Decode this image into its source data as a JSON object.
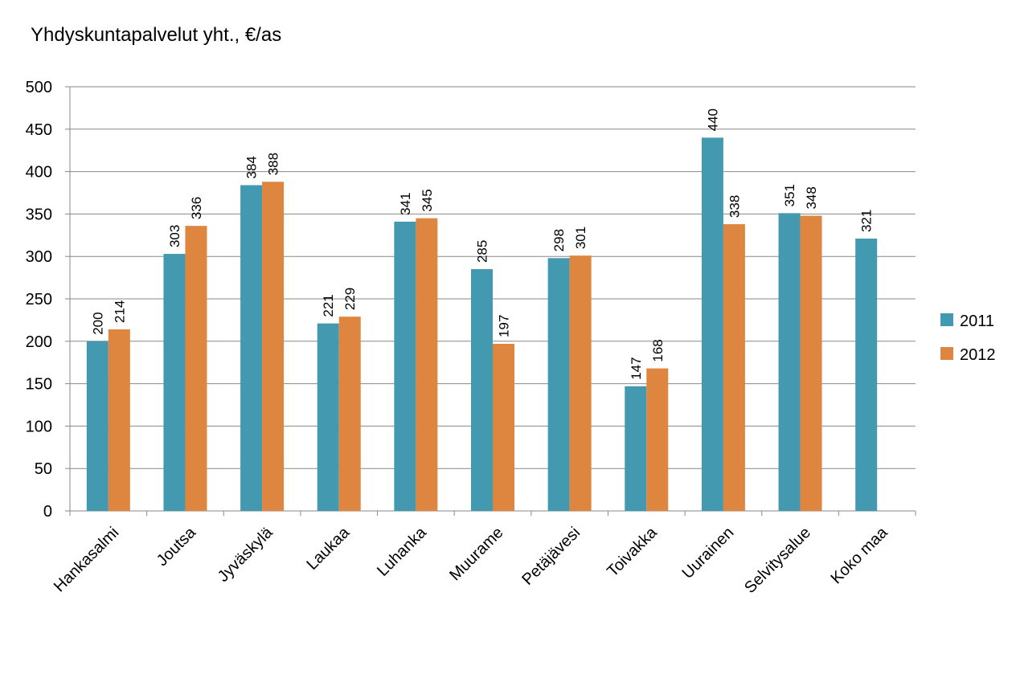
{
  "chart_data": {
    "type": "bar",
    "title": "Yhdyskuntapalvelut yht., €/as",
    "xlabel": "",
    "ylabel": "",
    "ylim": [
      0,
      500
    ],
    "yticks": [
      0,
      50,
      100,
      150,
      200,
      250,
      300,
      350,
      400,
      450,
      500
    ],
    "grid": true,
    "legend_position": "right",
    "categories": [
      "Hankasalmi",
      "Joutsa",
      "Jyväskylä",
      "Laukaa",
      "Luhanka",
      "Muurame",
      "Petäjävesi",
      "Toivakka",
      "Uurainen",
      "Selvitysalue",
      "Koko maa"
    ],
    "series": [
      {
        "name": "2011",
        "color": "#4299B0",
        "values": [
          200,
          303,
          384,
          221,
          341,
          285,
          298,
          147,
          440,
          351,
          321
        ]
      },
      {
        "name": "2012",
        "color": "#DE8640",
        "values": [
          214,
          336,
          388,
          229,
          345,
          197,
          301,
          168,
          338,
          348,
          null
        ]
      }
    ]
  }
}
